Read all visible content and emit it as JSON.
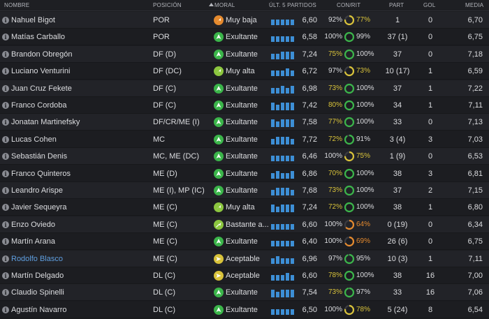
{
  "header": {
    "nombre": "NOMBRE",
    "posicion": "POSICIÓN",
    "moral": "MORAL",
    "ult5": "ÚLT. 5 PARTIDOS",
    "conrit": "CON/RIT",
    "part": "PART",
    "gol": "GOL",
    "media": "MEDIA",
    "sort_icon": "sort-up-icon"
  },
  "colors": {
    "green": "#3bb54a",
    "orange": "#e58a2e",
    "yellow_green": "#8cc63f",
    "yellow": "#d8c23a",
    "bar_blue": "#3d8fd6",
    "highlight_name": "#5f9fe0"
  },
  "players": [
    {
      "name": "Nahuel Bigot",
      "pos": "POR",
      "moral": "Muy baja",
      "moral_level": "muy-baja",
      "last5": [
        3,
        3,
        3,
        3,
        3
      ],
      "rating": "6,60",
      "con": "92%",
      "con_color": "#dcdde0",
      "rit": "77%",
      "rit_color": "#d8c23a",
      "part": "1",
      "gol": "0",
      "media": "6,70",
      "highlight": false
    },
    {
      "name": "Matías Carballo",
      "pos": "POR",
      "moral": "Exultante",
      "moral_level": "exultante",
      "last5": [
        3,
        3,
        3,
        3,
        3
      ],
      "rating": "6,58",
      "con": "100%",
      "con_color": "#dcdde0",
      "rit": "99%",
      "rit_color": "#dcdde0",
      "part": "37 (1)",
      "gol": "0",
      "media": "6,75",
      "highlight": false
    },
    {
      "name": "Brandon Obregón",
      "pos": "DF (D)",
      "moral": "Exultante",
      "moral_level": "exultante",
      "last5": [
        3,
        3,
        4,
        4,
        4
      ],
      "rating": "7,24",
      "con": "75%",
      "con_color": "#d8c23a",
      "rit": "100%",
      "rit_color": "#dcdde0",
      "part": "37",
      "gol": "0",
      "media": "7,18",
      "highlight": false
    },
    {
      "name": "Luciano Venturini",
      "pos": "DF (DC)",
      "moral": "Muy alta",
      "moral_level": "muy-alta",
      "last5": [
        3,
        3,
        3,
        4,
        3
      ],
      "rating": "6,72",
      "con": "97%",
      "con_color": "#dcdde0",
      "rit": "73%",
      "rit_color": "#d8c23a",
      "part": "10 (17)",
      "gol": "1",
      "media": "6,59",
      "highlight": false
    },
    {
      "name": "Juan Cruz Fekete",
      "pos": "DF (C)",
      "moral": "Exultante",
      "moral_level": "exultante",
      "last5": [
        3,
        3,
        4,
        3,
        4
      ],
      "rating": "6,98",
      "con": "73%",
      "con_color": "#d8c23a",
      "rit": "100%",
      "rit_color": "#dcdde0",
      "part": "37",
      "gol": "1",
      "media": "7,22",
      "highlight": false
    },
    {
      "name": "Franco Cordoba",
      "pos": "DF (C)",
      "moral": "Exultante",
      "moral_level": "exultante",
      "last5": [
        4,
        3,
        4,
        4,
        4
      ],
      "rating": "7,42",
      "con": "80%",
      "con_color": "#d8c23a",
      "rit": "100%",
      "rit_color": "#dcdde0",
      "part": "34",
      "gol": "1",
      "media": "7,11",
      "highlight": false
    },
    {
      "name": "Jonatan Martinefsky",
      "pos": "DF/CR/ME (I)",
      "moral": "Exultante",
      "moral_level": "exultante",
      "last5": [
        4,
        3,
        4,
        4,
        4
      ],
      "rating": "7,58",
      "con": "77%",
      "con_color": "#d8c23a",
      "rit": "100%",
      "rit_color": "#dcdde0",
      "part": "33",
      "gol": "0",
      "media": "7,13",
      "highlight": false
    },
    {
      "name": "Lucas Cohen",
      "pos": "MC",
      "moral": "Exultante",
      "moral_level": "exultante",
      "last5": [
        3,
        4,
        4,
        4,
        3
      ],
      "rating": "7,72",
      "con": "72%",
      "con_color": "#d8c23a",
      "rit": "91%",
      "rit_color": "#dcdde0",
      "part": "3 (4)",
      "gol": "3",
      "media": "7,03",
      "highlight": false
    },
    {
      "name": "Sebastián Denis",
      "pos": "MC, ME (DC)",
      "moral": "Exultante",
      "moral_level": "exultante",
      "last5": [
        3,
        3,
        3,
        3,
        3
      ],
      "rating": "6,46",
      "con": "100%",
      "con_color": "#dcdde0",
      "rit": "75%",
      "rit_color": "#d8c23a",
      "part": "1 (9)",
      "gol": "0",
      "media": "6,53",
      "highlight": false
    },
    {
      "name": "Franco Quinteros",
      "pos": "ME (D)",
      "moral": "Exultante",
      "moral_level": "exultante",
      "last5": [
        3,
        4,
        3,
        3,
        4
      ],
      "rating": "6,86",
      "con": "70%",
      "con_color": "#d8c23a",
      "rit": "100%",
      "rit_color": "#dcdde0",
      "part": "38",
      "gol": "3",
      "media": "6,81",
      "highlight": false
    },
    {
      "name": "Leandro Arispe",
      "pos": "ME (I), MP (IC)",
      "moral": "Exultante",
      "moral_level": "exultante",
      "last5": [
        3,
        4,
        4,
        4,
        3
      ],
      "rating": "7,68",
      "con": "73%",
      "con_color": "#d8c23a",
      "rit": "100%",
      "rit_color": "#dcdde0",
      "part": "37",
      "gol": "2",
      "media": "7,15",
      "highlight": false
    },
    {
      "name": "Javier Sequeyra",
      "pos": "ME (C)",
      "moral": "Muy alta",
      "moral_level": "muy-alta",
      "last5": [
        4,
        3,
        4,
        4,
        4
      ],
      "rating": "7,24",
      "con": "72%",
      "con_color": "#d8c23a",
      "rit": "100%",
      "rit_color": "#dcdde0",
      "part": "38",
      "gol": "1",
      "media": "6,80",
      "highlight": false
    },
    {
      "name": "Enzo Oviedo",
      "pos": "ME (C)",
      "moral": "Bastante a...",
      "moral_level": "bastante-alta",
      "last5": [
        3,
        3,
        3,
        3,
        3
      ],
      "rating": "6,60",
      "con": "100%",
      "con_color": "#dcdde0",
      "rit": "64%",
      "rit_color": "#e58a2e",
      "part": "0 (19)",
      "gol": "0",
      "media": "6,34",
      "highlight": false
    },
    {
      "name": "Martín Arana",
      "pos": "ME (C)",
      "moral": "Exultante",
      "moral_level": "exultante",
      "last5": [
        3,
        3,
        3,
        3,
        3
      ],
      "rating": "6,40",
      "con": "100%",
      "con_color": "#dcdde0",
      "rit": "69%",
      "rit_color": "#e58a2e",
      "part": "26 (6)",
      "gol": "0",
      "media": "6,75",
      "highlight": false
    },
    {
      "name": "Rodolfo Blasco",
      "pos": "ME (C)",
      "moral": "Aceptable",
      "moral_level": "aceptable",
      "last5": [
        3,
        4,
        3,
        3,
        3
      ],
      "rating": "6,96",
      "con": "97%",
      "con_color": "#dcdde0",
      "rit": "95%",
      "rit_color": "#dcdde0",
      "part": "10 (3)",
      "gol": "1",
      "media": "7,11",
      "highlight": true
    },
    {
      "name": "Martín Delgado",
      "pos": "DL (C)",
      "moral": "Aceptable",
      "moral_level": "aceptable",
      "last5": [
        3,
        3,
        3,
        4,
        3
      ],
      "rating": "6,60",
      "con": "78%",
      "con_color": "#d8c23a",
      "rit": "100%",
      "rit_color": "#dcdde0",
      "part": "38",
      "gol": "16",
      "media": "7,00",
      "highlight": false
    },
    {
      "name": "Claudio Spinelli",
      "pos": "DL (C)",
      "moral": "Exultante",
      "moral_level": "exultante",
      "last5": [
        4,
        3,
        4,
        4,
        4
      ],
      "rating": "7,54",
      "con": "73%",
      "con_color": "#d8c23a",
      "rit": "97%",
      "rit_color": "#dcdde0",
      "part": "33",
      "gol": "16",
      "media": "7,06",
      "highlight": false
    },
    {
      "name": "Agustín Navarro",
      "pos": "DL (C)",
      "moral": "Exultante",
      "moral_level": "exultante",
      "last5": [
        3,
        3,
        3,
        3,
        3
      ],
      "rating": "6,50",
      "con": "100%",
      "con_color": "#dcdde0",
      "rit": "78%",
      "rit_color": "#d8c23a",
      "part": "5 (24)",
      "gol": "8",
      "media": "6,54",
      "highlight": false
    }
  ]
}
